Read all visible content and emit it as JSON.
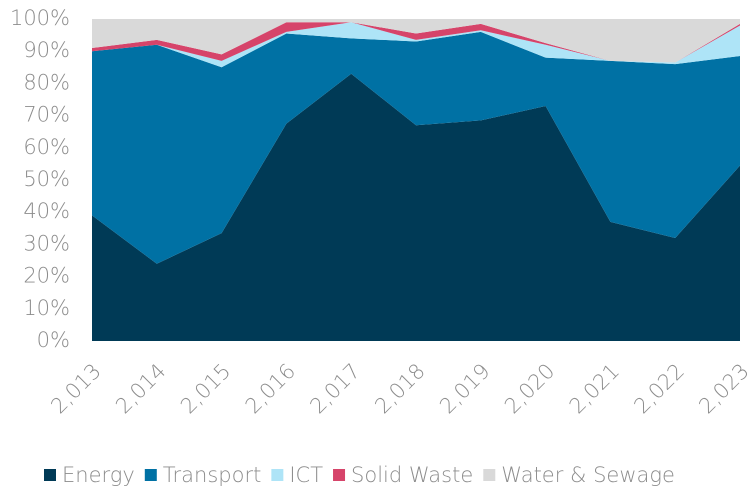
{
  "chart_data": {
    "type": "stacked_area",
    "categories": [
      "2,013",
      "2,014",
      "2,015",
      "2,016",
      "2,017",
      "2,018",
      "2,019",
      "2,020",
      "2,021",
      "2,022",
      "2,023"
    ],
    "series": [
      {
        "name": "Energy",
        "color": "#003a56",
        "values": [
          39,
          24,
          33.5,
          67.5,
          83,
          67,
          68.5,
          73,
          37,
          32,
          54.5
        ]
      },
      {
        "name": "Transport",
        "color": "#0071a4",
        "values": [
          51,
          68,
          51.5,
          28,
          11,
          26,
          27.5,
          15,
          50,
          54,
          34
        ]
      },
      {
        "name": "ICT",
        "color": "#aee4f7",
        "values": [
          0,
          0,
          2,
          0.5,
          5,
          0.5,
          0.5,
          4,
          0,
          0.5,
          9.5
        ]
      },
      {
        "name": "Solid Waste",
        "color": "#d6446a",
        "values": [
          1,
          1.5,
          2,
          3,
          0,
          2,
          2,
          0.5,
          0,
          0,
          0.5
        ]
      },
      {
        "name": "Water & Sewage",
        "color": "#d9d9d9",
        "values": [
          9,
          6.5,
          11,
          1,
          1,
          4.5,
          1.5,
          7.5,
          13,
          13.5,
          1.5
        ]
      }
    ],
    "ylim": [
      0,
      100
    ],
    "yticks": [
      {
        "value": 0,
        "label": "0%"
      },
      {
        "value": 10,
        "label": "10%"
      },
      {
        "value": 20,
        "label": "20%"
      },
      {
        "value": 30,
        "label": "30%"
      },
      {
        "value": 40,
        "label": "40%"
      },
      {
        "value": 50,
        "label": "50%"
      },
      {
        "value": 60,
        "label": "60%"
      },
      {
        "value": 70,
        "label": "70%"
      },
      {
        "value": 80,
        "label": "80%"
      },
      {
        "value": 90,
        "label": "90%"
      },
      {
        "value": 100,
        "label": "100%"
      }
    ],
    "legend": "bottom"
  }
}
